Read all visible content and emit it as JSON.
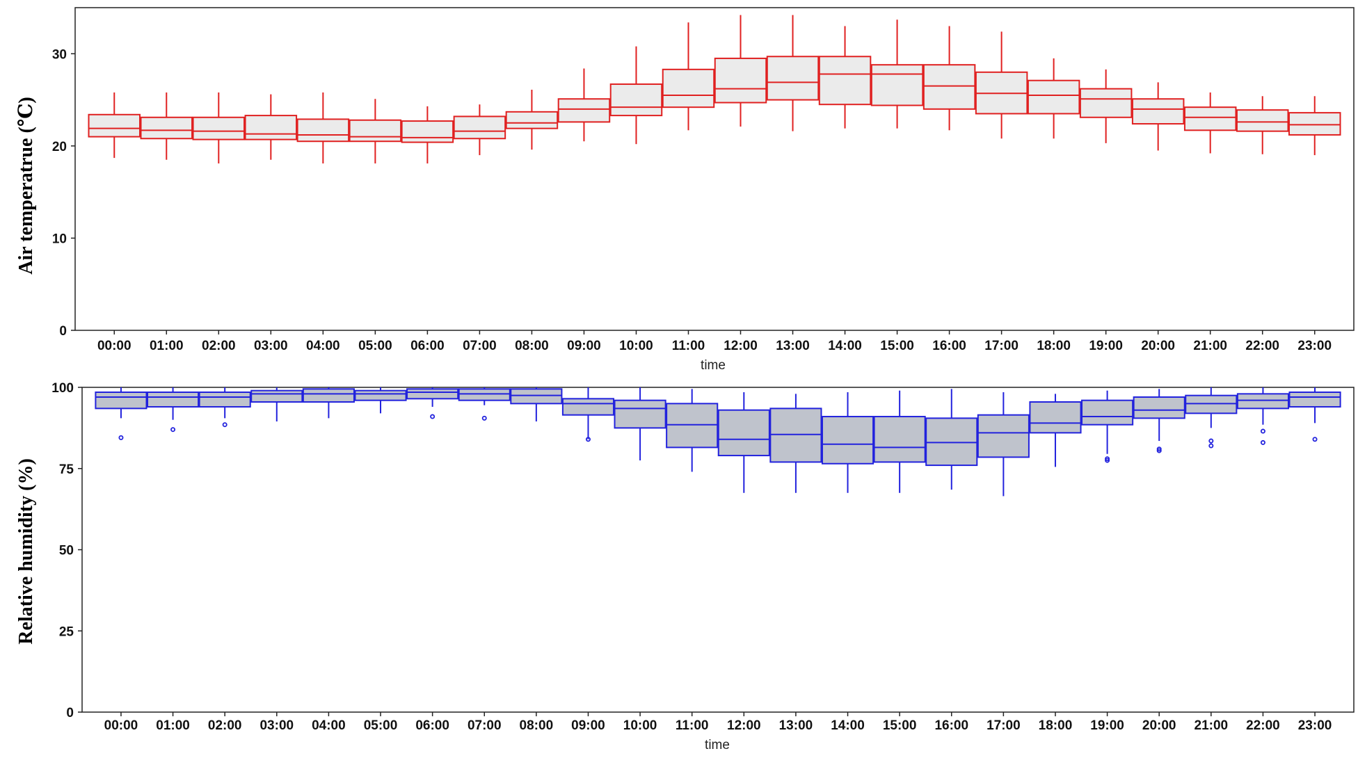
{
  "chart_data": [
    {
      "type": "box",
      "xlabel": "time",
      "ylabel": "Air temperatrue (℃)",
      "ylim": [
        0,
        35
      ],
      "yticks": [
        0,
        10,
        20,
        30
      ],
      "colors": {
        "stroke": "#e02020",
        "fill": "#ebebeb"
      },
      "categories": [
        "00:00",
        "01:00",
        "02:00",
        "03:00",
        "04:00",
        "05:00",
        "06:00",
        "07:00",
        "08:00",
        "09:00",
        "10:00",
        "11:00",
        "12:00",
        "13:00",
        "14:00",
        "15:00",
        "16:00",
        "17:00",
        "18:00",
        "19:00",
        "20:00",
        "21:00",
        "22:00",
        "23:00"
      ],
      "boxes": [
        {
          "lw": 18.7,
          "q1": 21.0,
          "med": 21.9,
          "q3": 23.4,
          "uw": 25.8,
          "out": []
        },
        {
          "lw": 18.5,
          "q1": 20.8,
          "med": 21.7,
          "q3": 23.1,
          "uw": 25.8,
          "out": []
        },
        {
          "lw": 18.1,
          "q1": 20.7,
          "med": 21.6,
          "q3": 23.1,
          "uw": 25.8,
          "out": []
        },
        {
          "lw": 18.5,
          "q1": 20.7,
          "med": 21.3,
          "q3": 23.3,
          "uw": 25.6,
          "out": []
        },
        {
          "lw": 18.1,
          "q1": 20.5,
          "med": 21.2,
          "q3": 22.9,
          "uw": 25.8,
          "out": []
        },
        {
          "lw": 18.1,
          "q1": 20.5,
          "med": 21.0,
          "q3": 22.8,
          "uw": 25.1,
          "out": []
        },
        {
          "lw": 18.1,
          "q1": 20.4,
          "med": 20.9,
          "q3": 22.7,
          "uw": 24.3,
          "out": []
        },
        {
          "lw": 19.0,
          "q1": 20.8,
          "med": 21.6,
          "q3": 23.2,
          "uw": 24.5,
          "out": []
        },
        {
          "lw": 19.6,
          "q1": 21.9,
          "med": 22.5,
          "q3": 23.7,
          "uw": 26.1,
          "out": []
        },
        {
          "lw": 20.5,
          "q1": 22.6,
          "med": 24.0,
          "q3": 25.1,
          "uw": 28.4,
          "out": []
        },
        {
          "lw": 20.2,
          "q1": 23.3,
          "med": 24.2,
          "q3": 26.7,
          "uw": 30.8,
          "out": []
        },
        {
          "lw": 21.7,
          "q1": 24.2,
          "med": 25.5,
          "q3": 28.3,
          "uw": 33.4,
          "out": []
        },
        {
          "lw": 22.1,
          "q1": 24.7,
          "med": 26.2,
          "q3": 29.5,
          "uw": 34.2,
          "out": []
        },
        {
          "lw": 21.6,
          "q1": 25.0,
          "med": 26.9,
          "q3": 29.7,
          "uw": 34.2,
          "out": []
        },
        {
          "lw": 21.9,
          "q1": 24.5,
          "med": 27.8,
          "q3": 29.7,
          "uw": 33.0,
          "out": []
        },
        {
          "lw": 21.9,
          "q1": 24.4,
          "med": 27.8,
          "q3": 28.8,
          "uw": 33.7,
          "out": []
        },
        {
          "lw": 21.7,
          "q1": 24.0,
          "med": 26.5,
          "q3": 28.8,
          "uw": 33.0,
          "out": []
        },
        {
          "lw": 20.8,
          "q1": 23.5,
          "med": 25.7,
          "q3": 28.0,
          "uw": 32.4,
          "out": []
        },
        {
          "lw": 20.8,
          "q1": 23.5,
          "med": 25.5,
          "q3": 27.1,
          "uw": 29.5,
          "out": []
        },
        {
          "lw": 20.3,
          "q1": 23.1,
          "med": 25.1,
          "q3": 26.2,
          "uw": 28.3,
          "out": []
        },
        {
          "lw": 19.5,
          "q1": 22.4,
          "med": 24.0,
          "q3": 25.1,
          "uw": 26.9,
          "out": []
        },
        {
          "lw": 19.2,
          "q1": 21.7,
          "med": 23.1,
          "q3": 24.2,
          "uw": 25.8,
          "out": []
        },
        {
          "lw": 19.1,
          "q1": 21.6,
          "med": 22.6,
          "q3": 23.9,
          "uw": 25.4,
          "out": []
        },
        {
          "lw": 19.0,
          "q1": 21.2,
          "med": 22.3,
          "q3": 23.6,
          "uw": 25.4,
          "out": []
        }
      ]
    },
    {
      "type": "box",
      "xlabel": "time",
      "ylabel": "Relative humidity (%)",
      "ylim": [
        0,
        100
      ],
      "yticks": [
        0,
        25,
        50,
        75,
        100
      ],
      "colors": {
        "stroke": "#2222dd",
        "fill": "#bfc3cc"
      },
      "categories": [
        "00:00",
        "01:00",
        "02:00",
        "03:00",
        "04:00",
        "05:00",
        "06:00",
        "07:00",
        "08:00",
        "09:00",
        "10:00",
        "11:00",
        "12:00",
        "13:00",
        "14:00",
        "15:00",
        "16:00",
        "17:00",
        "18:00",
        "19:00",
        "20:00",
        "21:00",
        "22:00",
        "23:00"
      ],
      "boxes": [
        {
          "lw": 90.5,
          "q1": 93.5,
          "med": 97.0,
          "q3": 98.5,
          "uw": 100,
          "out": [
            84.5
          ]
        },
        {
          "lw": 90.0,
          "q1": 94.0,
          "med": 97.0,
          "q3": 98.5,
          "uw": 100,
          "out": [
            87.0
          ]
        },
        {
          "lw": 90.5,
          "q1": 94.0,
          "med": 97.0,
          "q3": 98.5,
          "uw": 100,
          "out": [
            88.5
          ]
        },
        {
          "lw": 89.5,
          "q1": 95.5,
          "med": 98.0,
          "q3": 99.0,
          "uw": 100,
          "out": []
        },
        {
          "lw": 90.5,
          "q1": 95.5,
          "med": 98.0,
          "q3": 99.5,
          "uw": 100,
          "out": []
        },
        {
          "lw": 92.0,
          "q1": 96.0,
          "med": 98.0,
          "q3": 99.0,
          "uw": 100,
          "out": []
        },
        {
          "lw": 94.0,
          "q1": 96.5,
          "med": 98.5,
          "q3": 99.5,
          "uw": 100,
          "out": [
            91.0
          ]
        },
        {
          "lw": 94.5,
          "q1": 96.0,
          "med": 98.0,
          "q3": 99.5,
          "uw": 100,
          "out": [
            90.5
          ]
        },
        {
          "lw": 89.5,
          "q1": 95.0,
          "med": 97.5,
          "q3": 99.5,
          "uw": 100,
          "out": []
        },
        {
          "lw": 84.0,
          "q1": 91.5,
          "med": 95.0,
          "q3": 96.5,
          "uw": 100,
          "out": [
            84.0
          ]
        },
        {
          "lw": 77.5,
          "q1": 87.5,
          "med": 93.5,
          "q3": 96.0,
          "uw": 100,
          "out": []
        },
        {
          "lw": 74.0,
          "q1": 81.5,
          "med": 88.5,
          "q3": 95.0,
          "uw": 99.5,
          "out": []
        },
        {
          "lw": 67.5,
          "q1": 79.0,
          "med": 84.0,
          "q3": 93.0,
          "uw": 98.5,
          "out": []
        },
        {
          "lw": 67.5,
          "q1": 77.0,
          "med": 85.5,
          "q3": 93.5,
          "uw": 98.0,
          "out": []
        },
        {
          "lw": 67.5,
          "q1": 76.5,
          "med": 82.5,
          "q3": 91.0,
          "uw": 98.5,
          "out": []
        },
        {
          "lw": 67.5,
          "q1": 77.0,
          "med": 81.5,
          "q3": 91.0,
          "uw": 99.0,
          "out": []
        },
        {
          "lw": 68.5,
          "q1": 76.0,
          "med": 83.0,
          "q3": 90.5,
          "uw": 99.5,
          "out": []
        },
        {
          "lw": 66.5,
          "q1": 78.5,
          "med": 86.0,
          "q3": 91.5,
          "uw": 98.5,
          "out": []
        },
        {
          "lw": 75.5,
          "q1": 86.0,
          "med": 89.0,
          "q3": 95.5,
          "uw": 98.0,
          "out": []
        },
        {
          "lw": 79.5,
          "q1": 88.5,
          "med": 91.0,
          "q3": 96.0,
          "uw": 99.0,
          "out": [
            77.5,
            78.0
          ]
        },
        {
          "lw": 83.5,
          "q1": 90.5,
          "med": 93.0,
          "q3": 97.0,
          "uw": 99.5,
          "out": [
            80.5,
            81.0
          ]
        },
        {
          "lw": 87.5,
          "q1": 92.0,
          "med": 95.0,
          "q3": 97.5,
          "uw": 100,
          "out": [
            82.0,
            83.5
          ]
        },
        {
          "lw": 88.5,
          "q1": 93.5,
          "med": 96.0,
          "q3": 98.0,
          "uw": 100,
          "out": [
            83.0,
            86.5
          ]
        },
        {
          "lw": 89.0,
          "q1": 94.0,
          "med": 97.0,
          "q3": 98.5,
          "uw": 100,
          "out": [
            84.0
          ]
        }
      ]
    }
  ]
}
